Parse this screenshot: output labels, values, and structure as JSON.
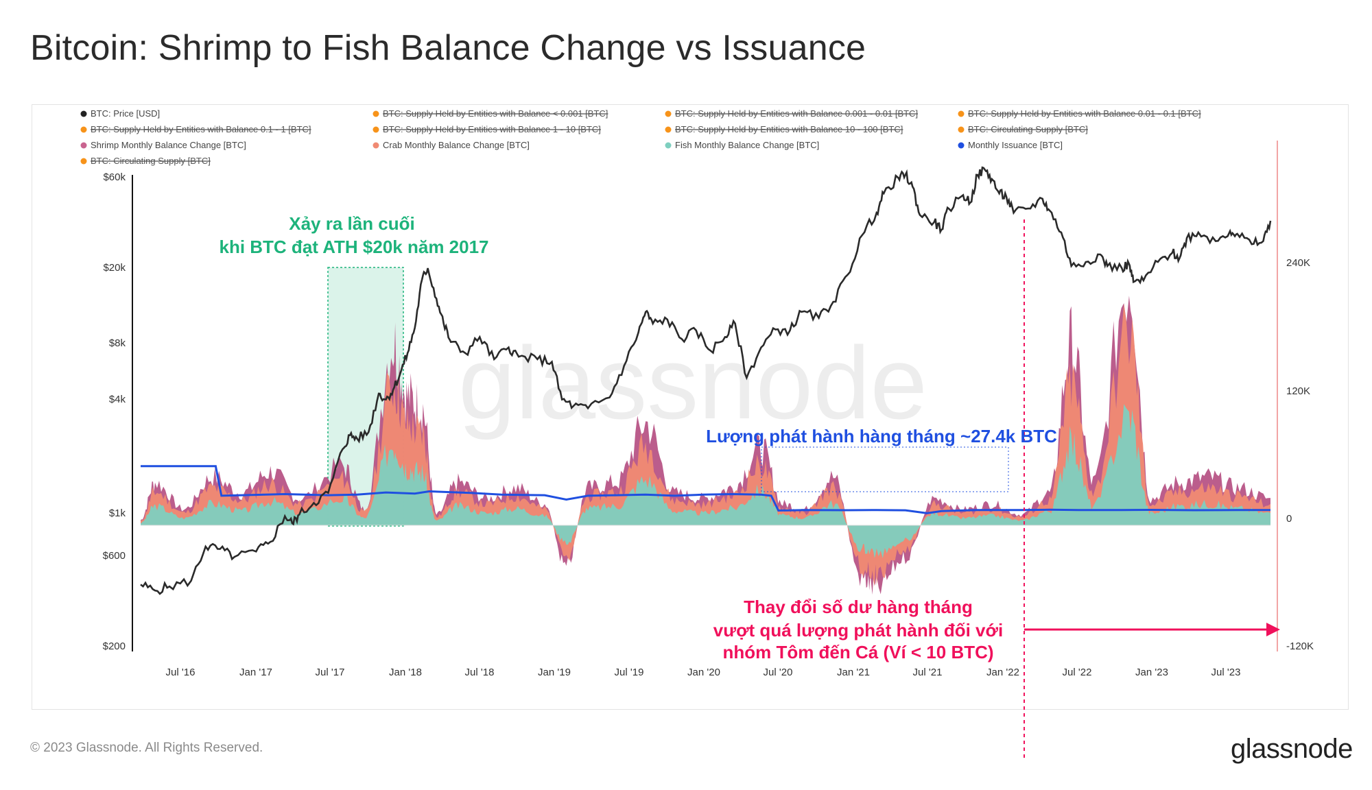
{
  "title": "Bitcoin: Shrimp to Fish Balance Change vs Issuance",
  "footer": "© 2023 Glassnode. All Rights Reserved.",
  "brand": "glassnode",
  "watermark": "glassnode",
  "chart_data": {
    "type": "area",
    "legend": [
      {
        "label": "BTC: Price [USD]",
        "color": "#222222",
        "struck": false
      },
      {
        "label": "BTC: Supply Held by Entities with Balance < 0.001 [BTC]",
        "color": "#f7931a",
        "struck": true
      },
      {
        "label": "BTC: Supply Held by Entities with Balance 0.001 - 0.01 [BTC]",
        "color": "#f7931a",
        "struck": true
      },
      {
        "label": "BTC: Supply Held by Entities with Balance 0.01 - 0.1 [BTC]",
        "color": "#f7931a",
        "struck": true
      },
      {
        "label": "BTC: Supply Held by Entities with Balance 0.1 - 1 [BTC]",
        "color": "#f7931a",
        "struck": true
      },
      {
        "label": "BTC: Supply Held by Entities with Balance 1 - 10 [BTC]",
        "color": "#f7931a",
        "struck": true
      },
      {
        "label": "BTC: Supply Held by Entities with Balance 10 - 100 [BTC]",
        "color": "#f7931a",
        "struck": true
      },
      {
        "label": "BTC: Circulating Supply [BTC]",
        "color": "#f7931a",
        "struck": true
      },
      {
        "label": "Shrimp Monthly Balance Change [BTC]",
        "color": "#c9648f",
        "struck": false
      },
      {
        "label": "Crab Monthly Balance Change [BTC]",
        "color": "#f08a73",
        "struck": false
      },
      {
        "label": "Fish Monthly Balance Change [BTC]",
        "color": "#7ecfbf",
        "struck": false
      },
      {
        "label": "Monthly Issuance [BTC]",
        "color": "#1f4fe0",
        "struck": false
      },
      {
        "label": "BTC: Circulating Supply [BTC]",
        "color": "#f7931a",
        "struck": true
      }
    ],
    "x_ticks": [
      "Jul '16",
      "Jan '17",
      "Jul '17",
      "Jan '18",
      "Jul '18",
      "Jan '19",
      "Jul '19",
      "Jan '20",
      "Jul '20",
      "Jan '21",
      "Jul '21",
      "Jan '22",
      "Jul '22",
      "Jan '23",
      "Jul '23"
    ],
    "x_range": [
      2016.0,
      2023.83
    ],
    "y_left": {
      "scale": "log",
      "ticks": [
        {
          "v": 60000,
          "label": "$60k"
        },
        {
          "v": 20000,
          "label": "$20k"
        },
        {
          "v": 8000,
          "label": "$8k"
        },
        {
          "v": 4000,
          "label": "$4k"
        },
        {
          "v": 1000,
          "label": "$1k"
        },
        {
          "v": 600,
          "label": "$600"
        },
        {
          "v": 200,
          "label": "$200"
        }
      ],
      "range": [
        200,
        60000
      ]
    },
    "y_right": {
      "scale": "linear",
      "ticks": [
        {
          "v": 240000,
          "label": "240K"
        },
        {
          "v": 120000,
          "label": "120K"
        },
        {
          "v": 0,
          "label": "0"
        },
        {
          "v": -120000,
          "label": "-120K"
        }
      ],
      "range": [
        -120000,
        240000
      ]
    },
    "price": [
      [
        2016.0,
        430
      ],
      [
        2016.1,
        400
      ],
      [
        2016.2,
        420
      ],
      [
        2016.35,
        450
      ],
      [
        2016.45,
        680
      ],
      [
        2016.55,
        660
      ],
      [
        2016.65,
        600
      ],
      [
        2016.8,
        640
      ],
      [
        2016.9,
        720
      ],
      [
        2017.0,
        980
      ],
      [
        2017.05,
        900
      ],
      [
        2017.1,
        1000
      ],
      [
        2017.2,
        1150
      ],
      [
        2017.3,
        1300
      ],
      [
        2017.4,
        2200
      ],
      [
        2017.45,
        2600
      ],
      [
        2017.5,
        2500
      ],
      [
        2017.58,
        2700
      ],
      [
        2017.65,
        4300
      ],
      [
        2017.7,
        4000
      ],
      [
        2017.75,
        4500
      ],
      [
        2017.8,
        5500
      ],
      [
        2017.85,
        7000
      ],
      [
        2017.9,
        9500
      ],
      [
        2017.95,
        17000
      ],
      [
        2017.99,
        19500
      ],
      [
        2018.05,
        13500
      ],
      [
        2018.1,
        10000
      ],
      [
        2018.15,
        8000
      ],
      [
        2018.25,
        7000
      ],
      [
        2018.35,
        8500
      ],
      [
        2018.45,
        6500
      ],
      [
        2018.55,
        7500
      ],
      [
        2018.62,
        6700
      ],
      [
        2018.75,
        6500
      ],
      [
        2018.85,
        6300
      ],
      [
        2018.92,
        4000
      ],
      [
        2019.0,
        3700
      ],
      [
        2019.1,
        3600
      ],
      [
        2019.25,
        4100
      ],
      [
        2019.35,
        6000
      ],
      [
        2019.45,
        9000
      ],
      [
        2019.5,
        11500
      ],
      [
        2019.55,
        10000
      ],
      [
        2019.65,
        10500
      ],
      [
        2019.75,
        8300
      ],
      [
        2019.85,
        9200
      ],
      [
        2019.95,
        7200
      ],
      [
        2020.05,
        8500
      ],
      [
        2020.12,
        10000
      ],
      [
        2020.2,
        5200
      ],
      [
        2020.3,
        7500
      ],
      [
        2020.4,
        9300
      ],
      [
        2020.5,
        9200
      ],
      [
        2020.58,
        11500
      ],
      [
        2020.7,
        10700
      ],
      [
        2020.8,
        13000
      ],
      [
        2020.9,
        18000
      ],
      [
        2021.0,
        29000
      ],
      [
        2021.1,
        38000
      ],
      [
        2021.15,
        48000
      ],
      [
        2021.25,
        58000
      ],
      [
        2021.3,
        60000
      ],
      [
        2021.35,
        52000
      ],
      [
        2021.4,
        37000
      ],
      [
        2021.5,
        34000
      ],
      [
        2021.55,
        31000
      ],
      [
        2021.6,
        40000
      ],
      [
        2021.7,
        47000
      ],
      [
        2021.75,
        43000
      ],
      [
        2021.8,
        60000
      ],
      [
        2021.85,
        64000
      ],
      [
        2021.9,
        57000
      ],
      [
        2021.95,
        48000
      ],
      [
        2022.0,
        46000
      ],
      [
        2022.05,
        38000
      ],
      [
        2022.15,
        40000
      ],
      [
        2022.25,
        45000
      ],
      [
        2022.3,
        39000
      ],
      [
        2022.38,
        30000
      ],
      [
        2022.45,
        20000
      ],
      [
        2022.55,
        21000
      ],
      [
        2022.65,
        23000
      ],
      [
        2022.7,
        20000
      ],
      [
        2022.8,
        19500
      ],
      [
        2022.85,
        20500
      ],
      [
        2022.88,
        16500
      ],
      [
        2022.95,
        16800
      ],
      [
        2023.05,
        21000
      ],
      [
        2023.15,
        23500
      ],
      [
        2023.2,
        22000
      ],
      [
        2023.25,
        28000
      ],
      [
        2023.33,
        30000
      ],
      [
        2023.45,
        27000
      ],
      [
        2023.55,
        30500
      ],
      [
        2023.6,
        29500
      ],
      [
        2023.7,
        26000
      ],
      [
        2023.78,
        27000
      ],
      [
        2023.83,
        34500
      ]
    ],
    "issuance": [
      [
        2016.0,
        54000
      ],
      [
        2016.3,
        54000
      ],
      [
        2016.52,
        54000
      ],
      [
        2016.56,
        27000
      ],
      [
        2016.7,
        27500
      ],
      [
        2017.0,
        28500
      ],
      [
        2017.3,
        27500
      ],
      [
        2017.5,
        28000
      ],
      [
        2017.7,
        30000
      ],
      [
        2017.9,
        29000
      ],
      [
        2018.0,
        31000
      ],
      [
        2018.3,
        29500
      ],
      [
        2018.5,
        28000
      ],
      [
        2018.8,
        27500
      ],
      [
        2018.95,
        23500
      ],
      [
        2019.1,
        27000
      ],
      [
        2019.3,
        27500
      ],
      [
        2019.5,
        28000
      ],
      [
        2019.7,
        27000
      ],
      [
        2019.9,
        28000
      ],
      [
        2020.1,
        28500
      ],
      [
        2020.3,
        28000
      ],
      [
        2020.37,
        27000
      ],
      [
        2020.42,
        13500
      ],
      [
        2020.6,
        14000
      ],
      [
        2020.9,
        13800
      ],
      [
        2021.1,
        14000
      ],
      [
        2021.3,
        13700
      ],
      [
        2021.45,
        11000
      ],
      [
        2021.55,
        13000
      ],
      [
        2021.8,
        14000
      ],
      [
        2022.1,
        14000
      ],
      [
        2022.3,
        14200
      ],
      [
        2022.5,
        13900
      ],
      [
        2022.8,
        14000
      ],
      [
        2023.0,
        14100
      ],
      [
        2023.3,
        13800
      ],
      [
        2023.6,
        14000
      ],
      [
        2023.83,
        13900
      ]
    ],
    "shrimp_crab_fish_peaks": [
      [
        2016.0,
        5000
      ],
      [
        2016.1,
        40000
      ],
      [
        2016.3,
        15000
      ],
      [
        2016.5,
        45000
      ],
      [
        2016.7,
        30000
      ],
      [
        2016.9,
        50000
      ],
      [
        2017.1,
        25000
      ],
      [
        2017.4,
        55000
      ],
      [
        2017.55,
        15000
      ],
      [
        2017.75,
        170000
      ],
      [
        2017.85,
        120000
      ],
      [
        2017.95,
        110000
      ],
      [
        2018.05,
        10000
      ],
      [
        2018.2,
        40000
      ],
      [
        2018.4,
        25000
      ],
      [
        2018.6,
        35000
      ],
      [
        2018.8,
        20000
      ],
      [
        2018.95,
        -40000
      ],
      [
        2019.1,
        35000
      ],
      [
        2019.3,
        40000
      ],
      [
        2019.5,
        95000
      ],
      [
        2019.7,
        30000
      ],
      [
        2019.9,
        25000
      ],
      [
        2020.1,
        35000
      ],
      [
        2020.3,
        72000
      ],
      [
        2020.45,
        20000
      ],
      [
        2020.6,
        15000
      ],
      [
        2020.8,
        45000
      ],
      [
        2021.0,
        -50000
      ],
      [
        2021.1,
        -60000
      ],
      [
        2021.3,
        -30000
      ],
      [
        2021.5,
        25000
      ],
      [
        2021.7,
        15000
      ],
      [
        2021.9,
        20000
      ],
      [
        2022.1,
        10000
      ],
      [
        2022.3,
        30000
      ],
      [
        2022.45,
        170000
      ],
      [
        2022.6,
        40000
      ],
      [
        2022.85,
        230000
      ],
      [
        2023.0,
        25000
      ],
      [
        2023.2,
        40000
      ],
      [
        2023.4,
        45000
      ],
      [
        2023.6,
        35000
      ],
      [
        2023.83,
        25000
      ]
    ],
    "annotations": [
      {
        "text": "Xảy ra lần cuối",
        "color": "#1db37b"
      },
      {
        "text": "khi BTC đạt ATH $20k năm 2017",
        "color": "#1db37b"
      },
      {
        "text": "Lượng phát hành hàng tháng ~27.4k BTC",
        "color": "#1f4fe0"
      },
      {
        "text": "Thay đổi số dư hàng tháng",
        "color": "#f0105b"
      },
      {
        "text": "vượt quá lượng phát hành đối với",
        "color": "#f0105b"
      },
      {
        "text": "nhóm Tôm đến Cá (Ví < 10 BTC)",
        "color": "#f0105b"
      }
    ]
  }
}
